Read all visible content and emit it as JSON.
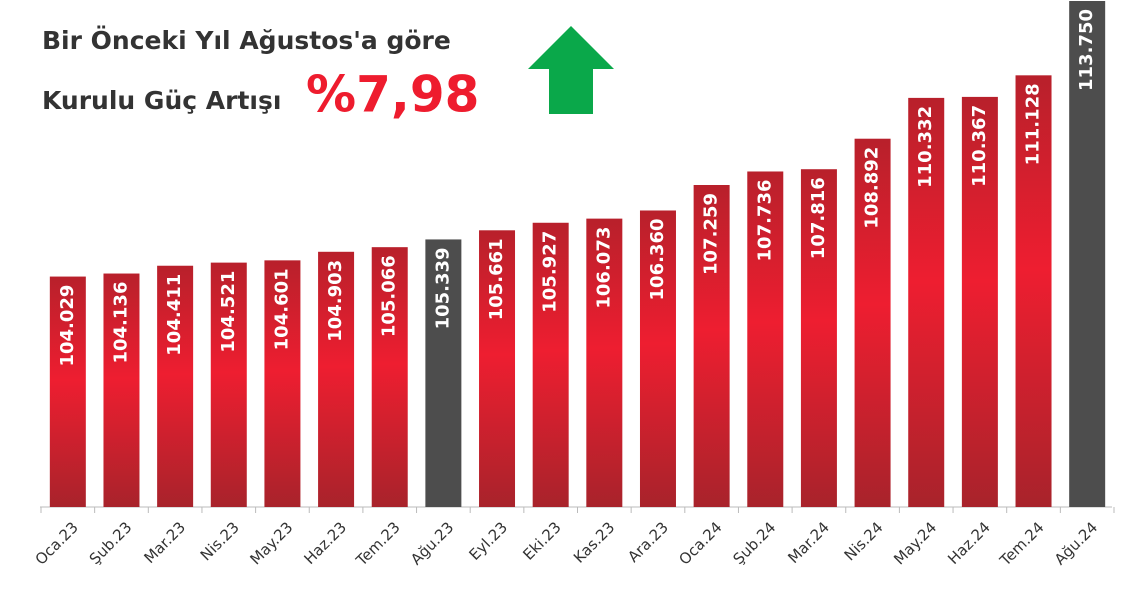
{
  "chart_data": {
    "type": "bar",
    "title": "Bir Önceki Yıl Ağustos'a göre",
    "subtitle": "Kurulu Güç Artışı",
    "annotation": "%7,98",
    "categories": [
      "Oca.23",
      "Şub.23",
      "Mar.23",
      "Nis.23",
      "May.23",
      "Haz.23",
      "Tem.23",
      "Ağu.23",
      "Eyl.23",
      "Eki.23",
      "Kas.23",
      "Ara.23",
      "Oca.24",
      "Şub.24",
      "Mar.24",
      "Nis.24",
      "May.24",
      "Haz.24",
      "Tem.24",
      "Ağu.24"
    ],
    "values": [
      104029,
      104136,
      104411,
      104521,
      104601,
      104903,
      105066,
      105339,
      105661,
      105927,
      106073,
      106360,
      107259,
      107736,
      107816,
      108892,
      110332,
      110367,
      111128,
      113750
    ],
    "value_labels": [
      "104.029",
      "104.136",
      "104.411",
      "104.521",
      "104.601",
      "104.903",
      "105.066",
      "105.339",
      "105.661",
      "105.927",
      "106.073",
      "106.360",
      "107.259",
      "107.736",
      "107.816",
      "108.892",
      "110.332",
      "110.367",
      "111.128",
      "113.750"
    ],
    "colors": [
      "#e41e2d",
      "#e41e2d",
      "#e41e2d",
      "#e41e2d",
      "#e41e2d",
      "#e41e2d",
      "#e41e2d",
      "#4d4d4d",
      "#e41e2d",
      "#e41e2d",
      "#e41e2d",
      "#e41e2d",
      "#e41e2d",
      "#e41e2d",
      "#e41e2d",
      "#e41e2d",
      "#e41e2d",
      "#e41e2d",
      "#e41e2d",
      "#4d4d4d"
    ],
    "ylim": [
      95900,
      113750
    ]
  }
}
